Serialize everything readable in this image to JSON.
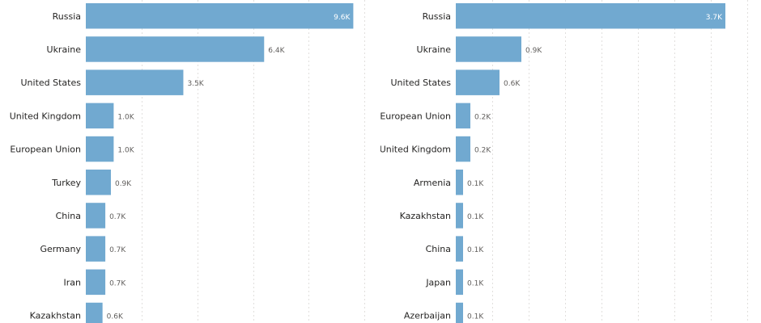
{
  "colors": {
    "bar": "#71a9d0",
    "grid": "#e1dfdd"
  },
  "chart_data": [
    {
      "type": "bar",
      "orientation": "horizontal",
      "categories": [
        "Russia",
        "Ukraine",
        "United States",
        "United Kingdom",
        "European Union",
        "Turkey",
        "China",
        "Germany",
        "Iran",
        "Kazakhstan"
      ],
      "values": [
        9.6,
        6.4,
        3.5,
        1.0,
        1.0,
        0.9,
        0.7,
        0.7,
        0.7,
        0.6
      ],
      "data_labels": [
        "9.6K",
        "6.4K",
        "3.5K",
        "1.0K",
        "1.0K",
        "0.9K",
        "0.7K",
        "0.7K",
        "0.7K",
        "0.6K"
      ],
      "xlim": [
        0,
        12
      ],
      "grid": true
    },
    {
      "type": "bar",
      "orientation": "horizontal",
      "categories": [
        "Russia",
        "Ukraine",
        "United States",
        "European Union",
        "United Kingdom",
        "Armenia",
        "Kazakhstan",
        "China",
        "Japan",
        "Azerbaijan"
      ],
      "values": [
        3.7,
        0.9,
        0.6,
        0.2,
        0.2,
        0.1,
        0.1,
        0.1,
        0.1,
        0.1
      ],
      "data_labels": [
        "3.7K",
        "0.9K",
        "0.6K",
        "0.2K",
        "0.2K",
        "0.1K",
        "0.1K",
        "0.1K",
        "0.1K",
        "0.1K"
      ],
      "xlim": [
        0,
        4
      ],
      "grid": true
    }
  ]
}
